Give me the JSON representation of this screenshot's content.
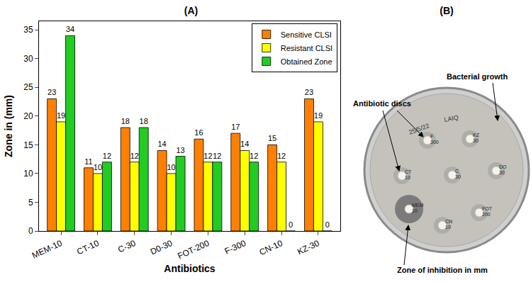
{
  "chart_data": {
    "type": "bar",
    "title": "(A)",
    "x_label": "Antibiotics",
    "y_label": "Zone in (mm)",
    "categories": [
      "MEM-10",
      "CT-10",
      "C-30",
      "D0-30",
      "FOT-200",
      "F-300",
      "CN-10",
      "KZ-30"
    ],
    "series": [
      {
        "name": "Sensitive CLSI",
        "color": "#ff8000",
        "values": [
          23,
          11,
          18,
          14,
          16,
          17,
          15,
          23
        ]
      },
      {
        "name": "Resistant CLSI",
        "color": "#ffff00",
        "values": [
          19,
          10,
          12,
          10,
          12,
          14,
          12,
          19
        ]
      },
      {
        "name": "Obtained Zone",
        "color": "#22cc22",
        "values": [
          34,
          12,
          18,
          13,
          12,
          12,
          0,
          0
        ]
      }
    ],
    "ylim": [
      0,
      36.5
    ],
    "yticks": [
      0,
      5,
      10,
      15,
      20,
      25,
      30,
      35
    ],
    "grid": false,
    "legend": "upper right",
    "data_labels": true
  },
  "photo": {
    "title": "(B)",
    "handwriting": [
      "25/5/22",
      "LAIQ"
    ],
    "discs": [
      [
        "F",
        "300"
      ],
      [
        "KZ",
        "30"
      ],
      [
        "CT",
        "10"
      ],
      [
        "C",
        "30"
      ],
      [
        "DO",
        "30"
      ],
      [
        "MEM",
        "10"
      ],
      [
        "FOT",
        "200"
      ],
      [
        "CN",
        "10"
      ]
    ],
    "annotations": {
      "discs": "Antibiotic discs",
      "growth": "Bacterial growth",
      "zone": "Zone of inhibition in mm"
    }
  }
}
